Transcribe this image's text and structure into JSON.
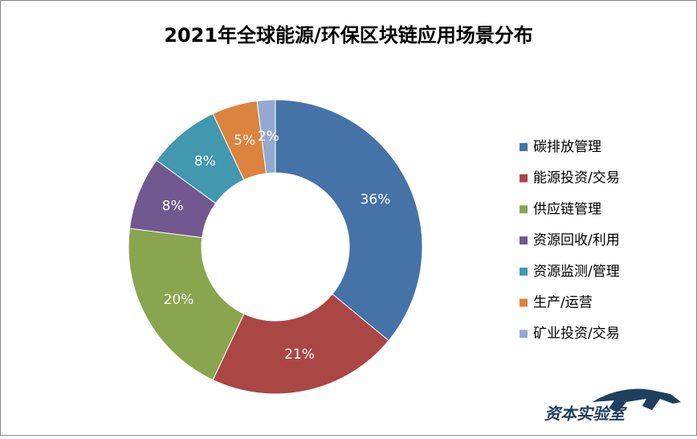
{
  "chart_data": {
    "type": "donut",
    "title": "2021年全球能源/环保区块链应用场景分布",
    "categories": [
      "碳排放管理",
      "能源投资/交易",
      "供应链管理",
      "资源回收/利用",
      "资源监测/管理",
      "生产/运营",
      "矿业投资/交易"
    ],
    "values": [
      36,
      21,
      20,
      8,
      8,
      5,
      2
    ],
    "value_labels": [
      "36%",
      "21%",
      "20%",
      "8%",
      "8%",
      "5%",
      "2%"
    ],
    "colors": [
      "#4572a7",
      "#aa4643",
      "#89a54e",
      "#71588f",
      "#4198af",
      "#db843d",
      "#93a9cf"
    ],
    "legend": "right"
  },
  "watermark": "资本实验室"
}
